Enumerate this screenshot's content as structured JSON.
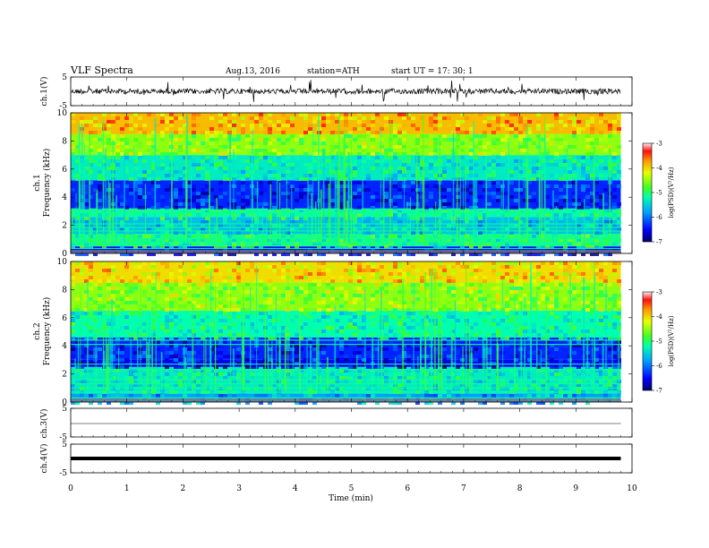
{
  "header": {
    "title": "VLF  Spectra",
    "date": "Aug.13, 2016",
    "station": "station=ATH",
    "start": "start  UT =    17: 30: 1"
  },
  "chart_data": [
    {
      "type": "line",
      "panel": "ch1-waveform",
      "ylabel": "ch.1(V)",
      "ylim": [
        -5,
        5
      ],
      "yticks": [
        "5",
        "-5"
      ],
      "xlim": [
        0,
        10
      ]
    },
    {
      "type": "heatmap",
      "panel": "ch1-spectrogram",
      "ylabel_top": "ch.1",
      "ylabel": "Frequency  (kHz)",
      "ylim": [
        0,
        10
      ],
      "yticks": [
        "0",
        "2",
        "4",
        "6",
        "8",
        "10"
      ],
      "colorbar": {
        "label": "log(PSD)(V²/Hz)",
        "range": [
          -7,
          -3
        ],
        "ticks": [
          "-3",
          "-4",
          "-5",
          "-6",
          "-7"
        ]
      }
    },
    {
      "type": "heatmap",
      "panel": "ch2-spectrogram",
      "ylabel_top": "ch.2",
      "ylabel": "Frequency  (kHz)",
      "ylim": [
        0,
        10
      ],
      "yticks": [
        "0",
        "2",
        "4",
        "6",
        "8",
        "10"
      ],
      "colorbar": {
        "label": "log(PSD)(V²/Hz)",
        "range": [
          -7,
          -3
        ],
        "ticks": [
          "-3",
          "-4",
          "-5",
          "-6",
          "-7"
        ]
      }
    },
    {
      "type": "line",
      "panel": "ch3-waveform",
      "ylabel": "ch.3(V)",
      "ylim": [
        -5,
        5
      ],
      "yticks": [
        "5",
        "-5"
      ]
    },
    {
      "type": "line",
      "panel": "ch4-waveform",
      "ylabel": "ch.4(V)",
      "ylim": [
        -5,
        5
      ],
      "yticks": [
        "5",
        "-5"
      ]
    }
  ],
  "xaxis": {
    "label": "Time  (min)",
    "range": [
      0,
      10
    ],
    "ticks": [
      "0",
      "1",
      "2",
      "3",
      "4",
      "5",
      "6",
      "7",
      "8",
      "9",
      "10"
    ],
    "data_end": 9.8
  }
}
